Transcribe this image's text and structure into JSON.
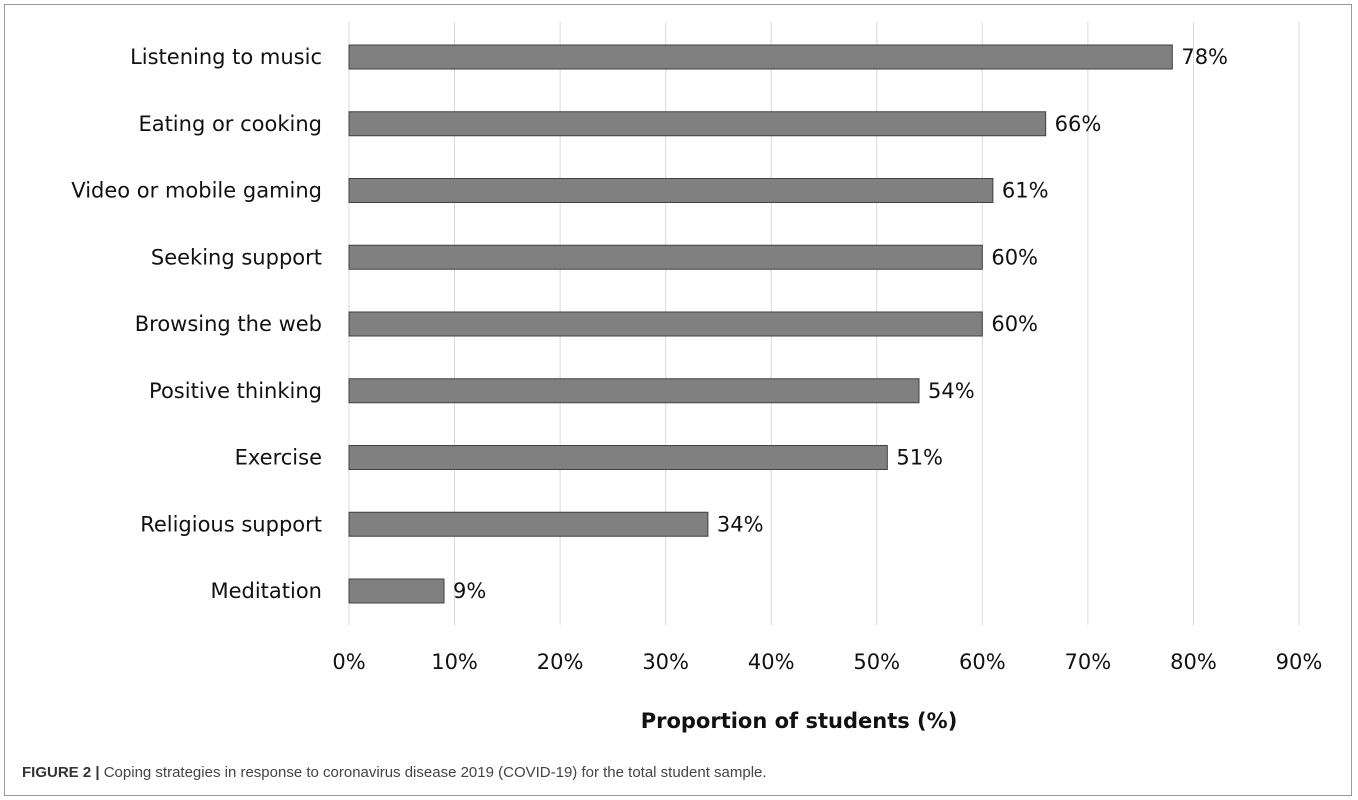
{
  "chart_data": {
    "type": "bar",
    "orientation": "horizontal",
    "categories": [
      "Listening to music",
      "Eating or cooking",
      "Video or mobile gaming",
      "Seeking support",
      "Browsing the web",
      "Positive thinking",
      "Exercise",
      "Religious support",
      "Meditation"
    ],
    "values": [
      78,
      66,
      61,
      60,
      60,
      54,
      51,
      34,
      9
    ],
    "value_labels": [
      "78%",
      "66%",
      "61%",
      "60%",
      "60%",
      "54%",
      "51%",
      "34%",
      "9%"
    ],
    "title": "",
    "xlabel": "Proportion of students (%)",
    "ylabel": "",
    "xlim": [
      0,
      90
    ],
    "x_ticks": [
      0,
      10,
      20,
      30,
      40,
      50,
      60,
      70,
      80,
      90
    ],
    "x_tick_labels": [
      "0%",
      "10%",
      "20%",
      "30%",
      "40%",
      "50%",
      "60%",
      "70%",
      "80%",
      "90%"
    ],
    "grid": "vertical",
    "legend": "none",
    "bar_color": "#808080",
    "bar_edge_color": "#404040",
    "grid_color": "#d9d9d9"
  },
  "caption": {
    "label": "FIGURE 2 |",
    "text": " Coping strategies in response to coronavirus disease 2019 (COVID-19) for the total student sample."
  }
}
